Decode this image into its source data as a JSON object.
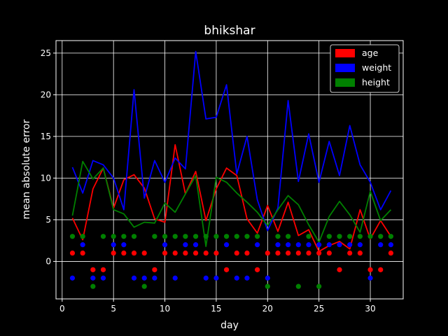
{
  "chart_data": {
    "type": "line",
    "title": "bhikshar",
    "xlabel": "day",
    "ylabel": "mean absolute error",
    "xlim": [
      -0.6,
      33.2
    ],
    "ylim": [
      -4.5,
      26.5
    ],
    "xticks": [
      0,
      5,
      10,
      15,
      20,
      25,
      30
    ],
    "yticks": [
      0,
      5,
      10,
      15,
      20,
      25
    ],
    "grid": true,
    "legend": "top-right",
    "background": "#000000",
    "x": [
      1,
      2,
      3,
      4,
      5,
      6,
      7,
      8,
      9,
      10,
      11,
      12,
      13,
      14,
      15,
      16,
      17,
      18,
      19,
      20,
      21,
      22,
      23,
      24,
      25,
      26,
      27,
      28,
      29,
      30,
      31,
      32
    ],
    "series": [
      {
        "name": "age",
        "color": "#ff0000",
        "values": [
          5.2,
          2.6,
          8.7,
          11.2,
          6.4,
          9.8,
          10.4,
          8.8,
          5.1,
          4.7,
          14.0,
          8.1,
          10.8,
          4.9,
          8.7,
          11.2,
          10.3,
          5.1,
          3.4,
          6.7,
          3.6,
          7.1,
          3.1,
          3.8,
          1.2,
          1.9,
          2.4,
          1.5,
          6.2,
          2.7,
          4.9,
          3.0
        ],
        "markers": [
          1,
          1,
          -1,
          -1,
          1,
          1,
          1,
          1,
          -1,
          1,
          1,
          1,
          1,
          1,
          1,
          -1,
          1,
          1,
          -1,
          1,
          1,
          1,
          1,
          1,
          1,
          1,
          -1,
          1,
          1,
          -1,
          -1,
          1
        ]
      },
      {
        "name": "weight",
        "color": "#0000ff",
        "values": [
          11.3,
          8.2,
          12.1,
          11.6,
          10.0,
          6.2,
          20.6,
          7.6,
          12.1,
          9.5,
          12.4,
          11.1,
          25.2,
          17.1,
          17.3,
          21.2,
          10.5,
          15.0,
          7.4,
          3.7,
          6.4,
          19.3,
          9.6,
          15.3,
          9.5,
          14.4,
          10.3,
          16.3,
          11.6,
          9.5,
          6.2,
          8.5
        ],
        "markers": [
          -2,
          2,
          -2,
          -2,
          2,
          2,
          -2,
          -2,
          -2,
          2,
          -2,
          2,
          2,
          -2,
          -2,
          2,
          -2,
          -2,
          2,
          -2,
          2,
          2,
          2,
          2,
          2,
          2,
          2,
          2,
          2,
          -2,
          2,
          2
        ]
      },
      {
        "name": "height",
        "color": "#008000",
        "values": [
          5.5,
          12.0,
          9.9,
          11.2,
          6.2,
          5.7,
          4.1,
          4.7,
          4.6,
          7.0,
          5.9,
          8.1,
          10.3,
          1.8,
          10.1,
          9.5,
          8.2,
          7.1,
          5.9,
          4.3,
          6.2,
          7.9,
          6.8,
          4.4,
          2.3,
          5.4,
          7.2,
          5.6,
          3.5,
          8.4,
          4.9,
          6.2
        ],
        "markers": [
          3,
          3,
          -3,
          3,
          3,
          3,
          3,
          -3,
          3,
          3,
          3,
          3,
          3,
          3,
          3,
          3,
          3,
          3,
          3,
          -3,
          3,
          3,
          -3,
          3,
          -3,
          3,
          3,
          3,
          3,
          3,
          3,
          3
        ]
      }
    ]
  }
}
